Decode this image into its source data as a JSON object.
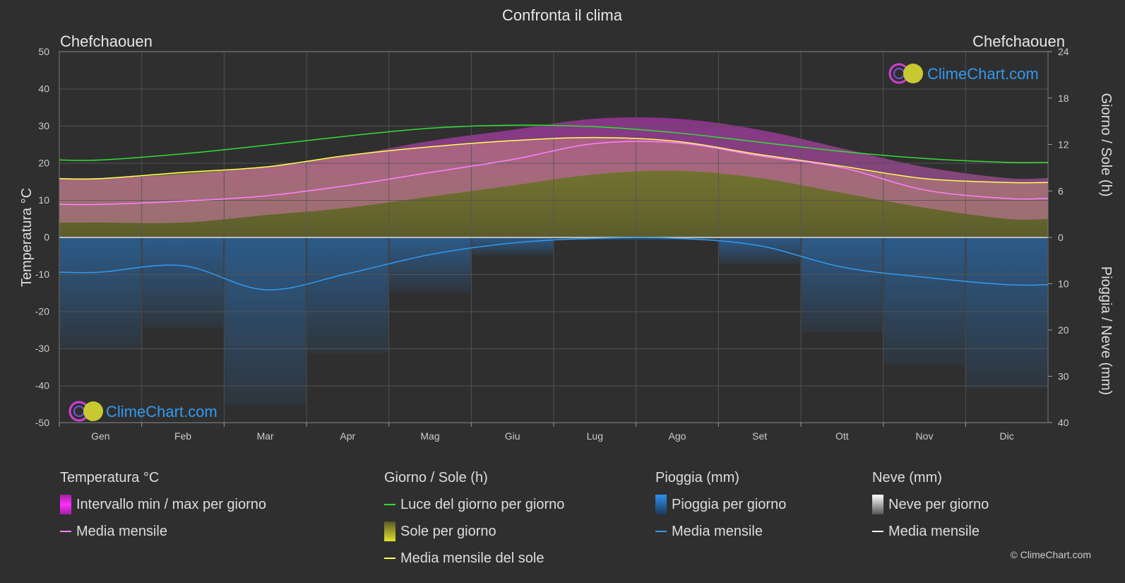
{
  "title": "Confronta il clima",
  "location_left": "Chefchaouen",
  "location_right": "Chefchaouen",
  "logo_text": "ClimeChart.com",
  "copyright": "© ClimeChart.com",
  "axes": {
    "left_label": "Temperatura °C",
    "right_top_label": "Giorno / Sole (h)",
    "right_bottom_label": "Pioggia / Neve (mm)",
    "left_ticks": [
      "50",
      "40",
      "30",
      "20",
      "10",
      "0",
      "-10",
      "-20",
      "-30",
      "-40",
      "-50"
    ],
    "right_top_ticks": [
      "24",
      "18",
      "12",
      "6",
      "0"
    ],
    "right_bottom_ticks": [
      "10",
      "20",
      "30",
      "40"
    ]
  },
  "legend": {
    "temp": {
      "title": "Temperatura °C",
      "range": "Intervallo min / max per giorno",
      "mean": "Media mensile"
    },
    "sun": {
      "title": "Giorno / Sole (h)",
      "daylight": "Luce del giorno per giorno",
      "sunshine": "Sole per giorno",
      "sun_mean": "Media mensile del sole"
    },
    "rain": {
      "title": "Pioggia (mm)",
      "rain_day": "Pioggia per giorno",
      "mean": "Media mensile"
    },
    "snow": {
      "title": "Neve (mm)",
      "snow_day": "Neve per giorno",
      "mean": "Media mensile"
    }
  },
  "colors": {
    "background": "#2f2f2f",
    "temp_range": "#e040e0",
    "temp_mean": "#ff80ff",
    "daylight": "#33dd33",
    "sunshine": "#c8c832",
    "sun_mean": "#ffff55",
    "rain": "#2a7fd4",
    "rain_mean": "#3399ee",
    "snow_mean": "#ffffff",
    "logo": "#3399ee"
  },
  "chart_data": {
    "type": "area",
    "categories": [
      "Gen",
      "Feb",
      "Mar",
      "Apr",
      "Mag",
      "Giu",
      "Lug",
      "Ago",
      "Set",
      "Ott",
      "Nov",
      "Dic"
    ],
    "temp_ylim": [
      -50,
      50
    ],
    "sun_ylim": [
      0,
      24
    ],
    "rain_ylim": [
      0,
      40
    ],
    "grid": true,
    "series": [
      {
        "name": "Intervallo min / max per giorno",
        "axis": "temperature",
        "min": [
          4,
          4,
          6,
          8,
          11,
          14,
          17,
          18,
          16,
          12,
          8,
          5
        ],
        "max": [
          16,
          17,
          19,
          22,
          26,
          29,
          32,
          32,
          29,
          24,
          19,
          16
        ]
      },
      {
        "name": "Media mensile",
        "axis": "temperature",
        "values": [
          8.9,
          9.8,
          11.2,
          14.0,
          17.5,
          21.0,
          25.3,
          25.5,
          22.0,
          18.8,
          12.8,
          10.5
        ]
      },
      {
        "name": "Luce del giorno per giorno",
        "axis": "sun_hours",
        "values": [
          10.0,
          10.8,
          11.9,
          13.1,
          14.1,
          14.5,
          14.3,
          13.5,
          12.3,
          11.1,
          10.2,
          9.7
        ]
      },
      {
        "name": "Media mensile del sole",
        "axis": "sun_hours",
        "values": [
          7.6,
          8.4,
          9.1,
          10.6,
          11.7,
          12.5,
          12.9,
          12.4,
          10.7,
          9.2,
          7.6,
          7.1
        ]
      },
      {
        "name": "Media mensile",
        "axis": "rain_mm",
        "values": [
          7.5,
          6.1,
          11.3,
          7.8,
          3.7,
          1.2,
          0.2,
          0.2,
          1.8,
          6.4,
          8.6,
          10.2
        ]
      }
    ]
  }
}
